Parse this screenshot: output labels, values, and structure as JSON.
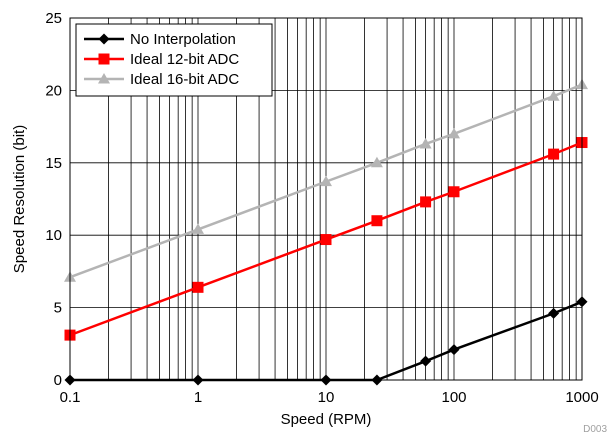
{
  "chart_data": {
    "type": "line",
    "xlabel": "Speed (RPM)",
    "ylabel": "Speed Resolution (bit)",
    "x_scale": "log",
    "xlim": [
      0.1,
      1000
    ],
    "ylim": [
      0,
      25
    ],
    "x_ticks": [
      0.1,
      1,
      10,
      100,
      1000
    ],
    "x_tick_labels": [
      "0.1",
      "1",
      "10",
      "100",
      "1000"
    ],
    "y_ticks": [
      0,
      5,
      10,
      15,
      20,
      25
    ],
    "y_tick_labels": [
      "0",
      "5",
      "10",
      "15",
      "20",
      "25"
    ],
    "grid": true,
    "legend_position": "top-left",
    "series": [
      {
        "name": "No Interpolation",
        "color": "#000000",
        "marker": "diamond",
        "x": [
          0.1,
          1,
          10,
          25,
          60,
          100,
          600,
          1000
        ],
        "y": [
          0,
          0,
          0,
          0,
          1.3,
          2.1,
          4.6,
          5.4
        ]
      },
      {
        "name": "Ideal 12-bit ADC",
        "color": "#ff0000",
        "marker": "square",
        "x": [
          0.1,
          1,
          10,
          25,
          60,
          100,
          600,
          1000
        ],
        "y": [
          3.1,
          6.4,
          9.7,
          11.0,
          12.3,
          13.0,
          15.6,
          16.4
        ]
      },
      {
        "name": "Ideal 16-bit ADC",
        "color": "#b4b4b4",
        "marker": "triangle",
        "x": [
          0.1,
          1,
          10,
          25,
          60,
          100,
          600,
          1000
        ],
        "y": [
          7.1,
          10.4,
          13.7,
          15.0,
          16.3,
          17.0,
          19.6,
          20.4
        ]
      }
    ],
    "figure_id": "D003"
  }
}
